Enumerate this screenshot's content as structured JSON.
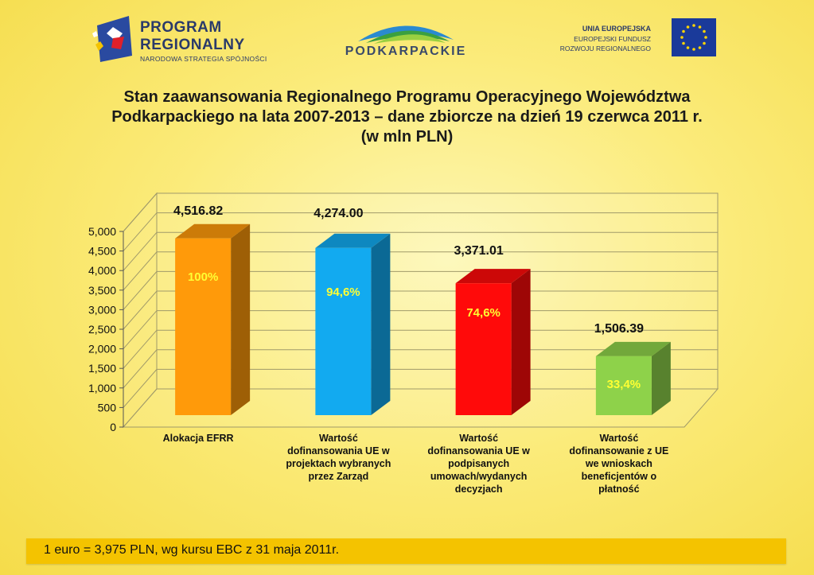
{
  "header": {
    "logo_left": {
      "line1": "PROGRAM",
      "line2": "REGIONALNY",
      "line3": "NARODOWA STRATEGIA SPÓJNOŚCI"
    },
    "logo_mid": {
      "text": "PODKARPACKIE"
    },
    "logo_right": {
      "line1": "UNIA EUROPEJSKA",
      "line2": "EUROPEJSKI FUNDUSZ",
      "line3": "ROZWOJU REGIONALNEGO"
    }
  },
  "colors": {
    "bar1": "#ff9a0a",
    "bar2": "#12aaf0",
    "bar3": "#ff0a0a",
    "bar4": "#8ed24a",
    "percent_text": "#ffff33"
  },
  "chart_data": {
    "type": "bar",
    "title_lines": [
      "Stan zaawansowania Regionalnego Programu Operacyjnego Województwa",
      "Podkarpackiego na lata 2007-2013 – dane zbiorcze na dzień 19 czerwca 2011 r.",
      "(w mln PLN)"
    ],
    "categories": [
      [
        "Alokacja EFRR"
      ],
      [
        "Wartość",
        "dofinansowania UE w",
        "projektach wybranych",
        "przez Zarząd"
      ],
      [
        "Wartość",
        "dofinansowania UE  w",
        "podpisanych",
        "umowach/wydanych",
        "decyzjach"
      ],
      [
        "Wartość",
        "dofinansowanie z UE",
        "we wnioskach",
        "beneficjentów o",
        "płatność"
      ]
    ],
    "values": [
      4516.82,
      4274.0,
      3371.01,
      1506.39
    ],
    "value_labels": [
      "4,516.82",
      "4,274.00",
      "3,371.01",
      "1,506.39"
    ],
    "percent_labels": [
      "100%",
      "94,6%",
      "74,6%",
      "33,4%"
    ],
    "ylim": [
      0,
      5000
    ],
    "yticks": [
      0,
      500,
      1000,
      1500,
      2000,
      2500,
      3000,
      3500,
      4000,
      4500,
      5000
    ],
    "ytick_labels": [
      "0",
      "500",
      "1,000",
      "1,500",
      "2,000",
      "2,500",
      "3,000",
      "3,500",
      "4,000",
      "4,500",
      "5,000"
    ],
    "grid": true,
    "legend": false,
    "style": "3d"
  },
  "footer": {
    "note": "1 euro = 3,975 PLN, wg kursu EBC z 31 maja 2011r."
  }
}
